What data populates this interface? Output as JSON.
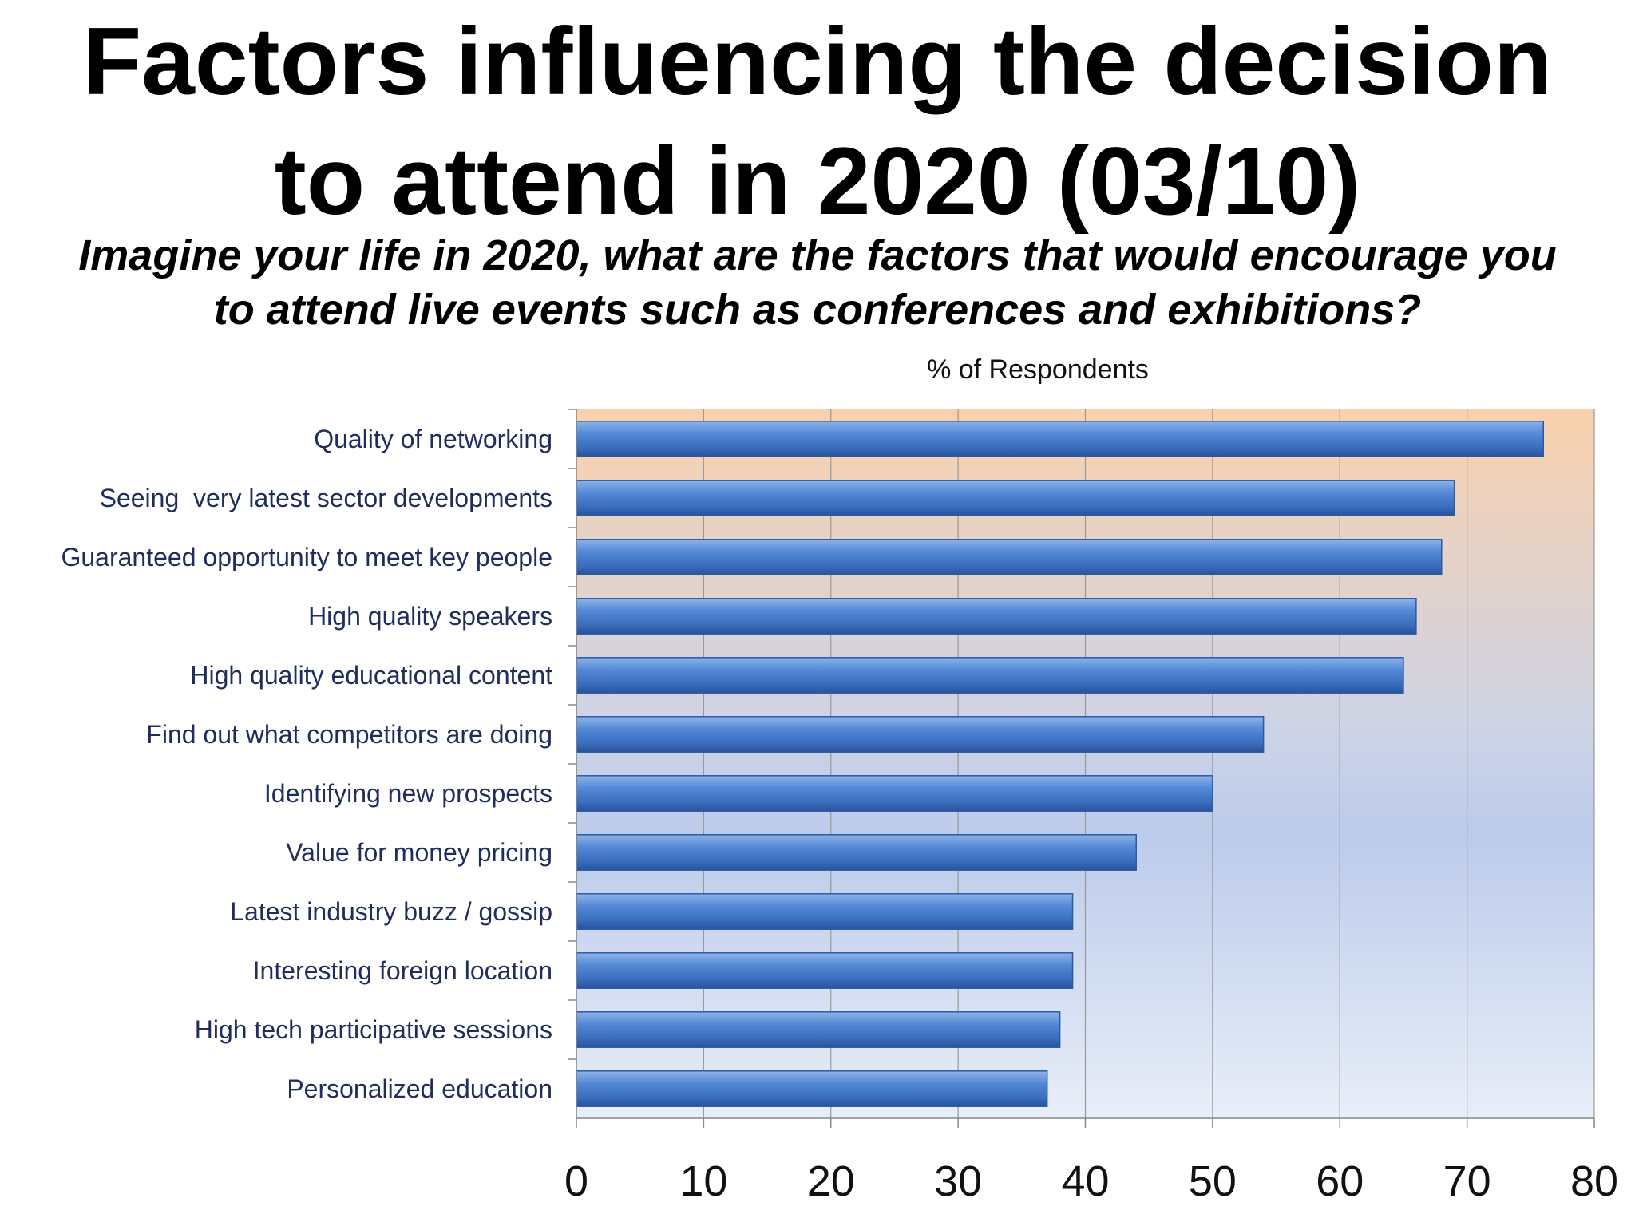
{
  "title_line1": "Factors influencing the decision",
  "title_line2": "to attend in 2020 (03/10)",
  "subtitle_line1": "Imagine your life in 2020, what are the factors that would encourage you",
  "subtitle_line2": "to attend live events such as conferences and exhibitions?",
  "chart_data": {
    "type": "bar",
    "orientation": "horizontal",
    "xlabel": "% of Respondents",
    "xlim": [
      0,
      80
    ],
    "xticks": [
      0,
      10,
      20,
      30,
      40,
      50,
      60,
      70,
      80
    ],
    "grid": true,
    "categories": [
      "Quality of networking",
      "Seeing  very latest sector developments",
      "Guaranteed opportunity to meet key people",
      "High quality speakers",
      "High quality educational content",
      "Find out what competitors are doing",
      "Identifying new prospects",
      "Value for money pricing",
      "Latest industry buzz / gossip",
      "Interesting foreign location",
      "High tech participative sessions",
      "Personalized education"
    ],
    "values": [
      76,
      69,
      68,
      66,
      65,
      54,
      50,
      44,
      39,
      39,
      38,
      37
    ],
    "colors": {
      "bar": "#4a7cc7",
      "bar_dark": "#2a5aa3",
      "label": "#1f2d5c",
      "grid": "#999999",
      "bg_top": "#f9d0a8",
      "bg_bottom": "#e6ecf6"
    }
  }
}
